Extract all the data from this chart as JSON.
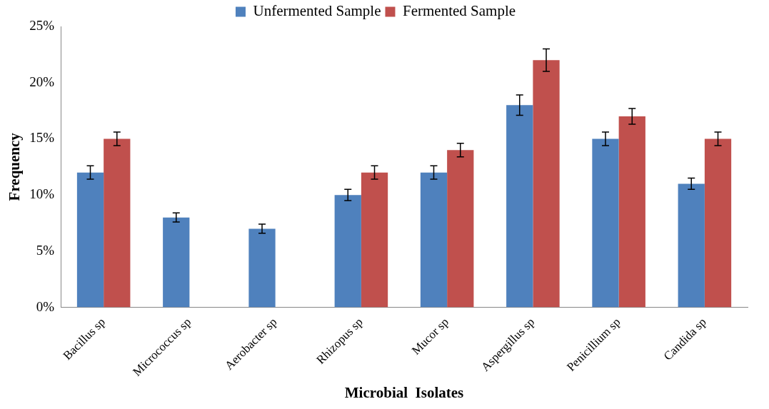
{
  "chart_data": {
    "type": "bar",
    "xlabel": "Microbial  Isolates",
    "ylabel": "Frequency",
    "categories": [
      "Bacillus sp",
      "Micrococcus sp",
      "Aerobacter sp",
      "Rhizopus sp",
      "Mucor sp",
      "Aspergillus sp",
      "Penicillium sp",
      "Candida sp"
    ],
    "series": [
      {
        "name": "Unfermented Sample",
        "color": "#4f81bd",
        "values": [
          12,
          8,
          7,
          10,
          12,
          18,
          15,
          11
        ],
        "errors": [
          0.6,
          0.4,
          0.4,
          0.5,
          0.6,
          0.9,
          0.6,
          0.5
        ]
      },
      {
        "name": "Fermented Sample",
        "color": "#c0504d",
        "values": [
          15,
          null,
          null,
          12,
          14,
          22,
          17,
          15
        ],
        "errors": [
          0.6,
          null,
          null,
          0.6,
          0.6,
          1,
          0.7,
          0.6
        ]
      }
    ],
    "ylim": [
      0,
      25
    ],
    "yticks": [
      {
        "value": 0,
        "label": "0%"
      },
      {
        "value": 5,
        "label": "5%"
      },
      {
        "value": 10,
        "label": "10%"
      },
      {
        "value": 15,
        "label": "15%"
      },
      {
        "value": 20,
        "label": "20%"
      },
      {
        "value": 25,
        "label": "25%"
      }
    ],
    "grid": false,
    "legend": "top"
  }
}
